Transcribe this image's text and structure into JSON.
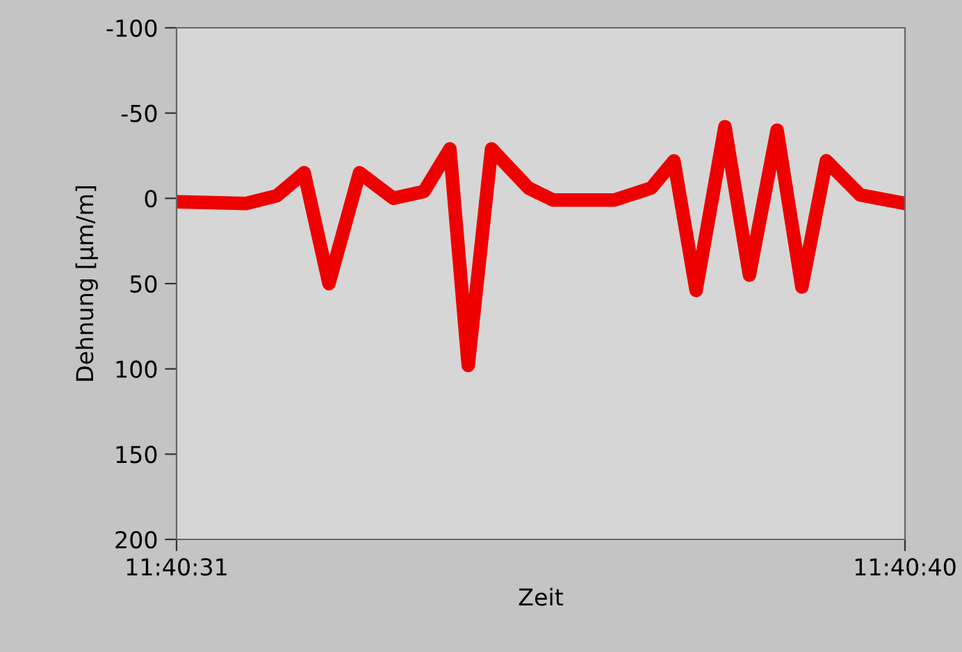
{
  "chart_data": {
    "type": "line",
    "xlabel": "Zeit",
    "ylabel": "Dehnung [µm/m]",
    "x": [
      11.675278,
      11.675516,
      11.675622,
      11.675716,
      11.675801,
      11.675906,
      11.676022,
      11.676127,
      11.676216,
      11.676279,
      11.676359,
      11.676486,
      11.67657,
      11.676781,
      11.676907,
      11.676985,
      11.677061,
      11.67716,
      11.677244,
      11.677339,
      11.677424,
      11.677508,
      11.677624,
      11.677778
    ],
    "series": [
      {
        "color": "#ee0000",
        "values": [
          2,
          3,
          -1.5,
          -15,
          50,
          -15,
          0,
          -4,
          -29,
          98,
          -29,
          -6,
          1,
          1,
          -6,
          -22,
          54,
          -42,
          45,
          -40,
          52,
          -22,
          -2,
          3
        ]
      }
    ],
    "xlim": [
      11.675278,
      11.677778
    ],
    "xticks": [
      {
        "value": 11.675278,
        "label": "11:40:31"
      },
      {
        "value": 11.677778,
        "label": "11:40:40"
      }
    ],
    "ylim": [
      200,
      -100
    ],
    "yticks": [
      -100,
      -50,
      0,
      50,
      100,
      150,
      200
    ],
    "grid": false,
    "legend": false,
    "marker": "none",
    "line_style": "solid"
  }
}
